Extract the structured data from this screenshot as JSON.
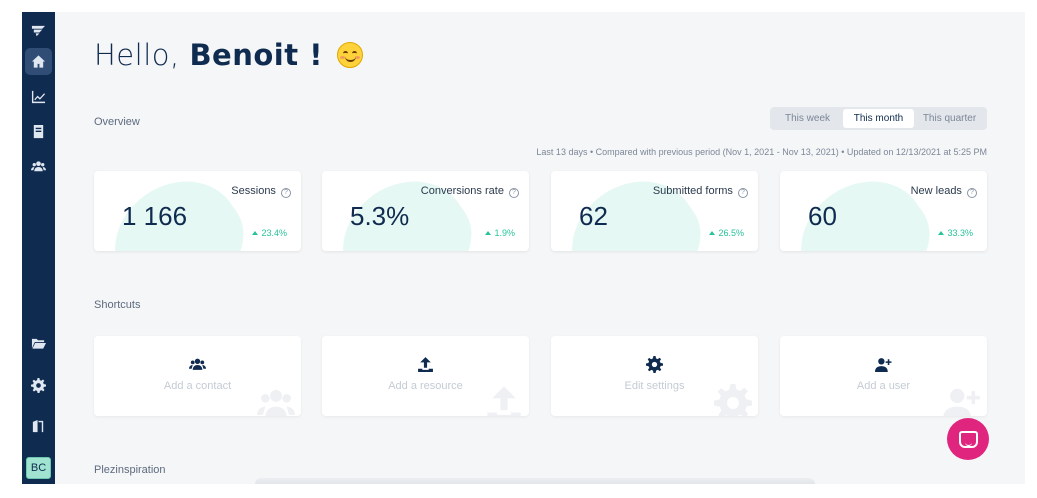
{
  "greeting": {
    "hello": "Hello,",
    "name": "Benoit !"
  },
  "sidebar": {
    "items": [
      "logo-icon",
      "home-icon",
      "analytics-icon",
      "book-icon",
      "users-icon",
      "folder-icon",
      "gear-icon",
      "exit-icon"
    ],
    "active": "home-icon",
    "avatar_initials": "BC"
  },
  "overview": {
    "title": "Overview",
    "periods": [
      "This week",
      "This month",
      "This quarter"
    ],
    "selected_period": "This month",
    "meta": "Last 13 days • Compared with previous period (Nov 1, 2021 - Nov 13, 2021) • Updated on 12/13/2021 at 5:25 PM",
    "stats": [
      {
        "label": "Sessions",
        "value": "1 166",
        "delta": "23.4%"
      },
      {
        "label": "Conversions rate",
        "value": "5.3%",
        "delta": "1.9%"
      },
      {
        "label": "Submitted forms",
        "value": "62",
        "delta": "26.5%"
      },
      {
        "label": "New leads",
        "value": "60",
        "delta": "33.3%"
      }
    ]
  },
  "shortcuts": {
    "title": "Shortcuts",
    "items": [
      {
        "label": "Add a contact",
        "icon": "users-icon"
      },
      {
        "label": "Add a resource",
        "icon": "upload-icon"
      },
      {
        "label": "Edit settings",
        "icon": "gear-icon"
      },
      {
        "label": "Add a user",
        "icon": "user-plus-icon"
      }
    ]
  },
  "inspiration": {
    "title": "Plezinspiration"
  },
  "colors": {
    "sidebar": "#0f2b4f",
    "accent_green": "#27c39a",
    "chat": "#e0257f"
  }
}
